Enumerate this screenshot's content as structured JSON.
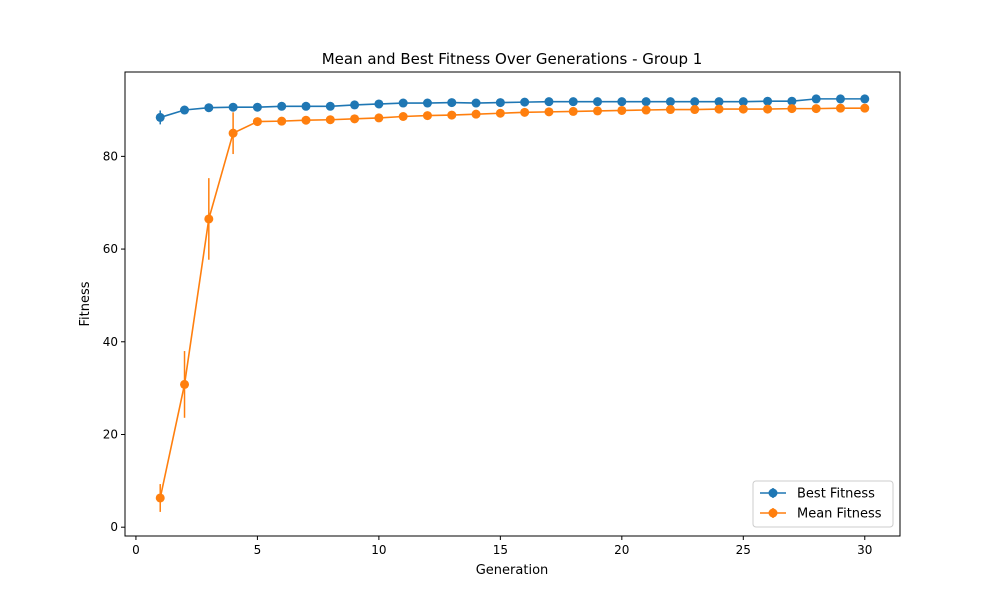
{
  "chart_data": {
    "type": "line",
    "title": "Mean and Best Fitness Over Generations - Group 1",
    "xlabel": "Generation",
    "ylabel": "Fitness",
    "xlim": [
      -0.45,
      31.45
    ],
    "ylim": [
      -1.9,
      98.2
    ],
    "xticks": [
      0,
      5,
      10,
      15,
      20,
      25,
      30
    ],
    "yticks": [
      0,
      20,
      40,
      60,
      80
    ],
    "grid": false,
    "legend_position": "bottom-right",
    "x": [
      1,
      2,
      3,
      4,
      5,
      6,
      7,
      8,
      9,
      10,
      11,
      12,
      13,
      14,
      15,
      16,
      17,
      18,
      19,
      20,
      21,
      22,
      23,
      24,
      25,
      26,
      27,
      28,
      29,
      30
    ],
    "series": [
      {
        "name": "Best Fitness",
        "color": "#1f77b4",
        "values": [
          88.4,
          90.0,
          90.5,
          90.6,
          90.6,
          90.8,
          90.8,
          90.8,
          91.1,
          91.3,
          91.5,
          91.5,
          91.6,
          91.5,
          91.6,
          91.7,
          91.8,
          91.8,
          91.8,
          91.8,
          91.8,
          91.8,
          91.8,
          91.8,
          91.8,
          91.9,
          91.9,
          92.4,
          92.4,
          92.4
        ],
        "errors": [
          1.5,
          0.5,
          0.5,
          0.5,
          0.4,
          0.4,
          0.4,
          0.4,
          0.4,
          0.4,
          0.4,
          0.4,
          0.5,
          0.5,
          0.4,
          0.4,
          0.4,
          0.4,
          0.4,
          0.4,
          0.4,
          0.4,
          0.4,
          0.4,
          0.4,
          0.4,
          0.4,
          0.4,
          0.4,
          0.4
        ]
      },
      {
        "name": "Mean Fitness",
        "color": "#ff7f0e",
        "values": [
          6.3,
          30.8,
          66.5,
          85.0,
          87.5,
          87.6,
          87.8,
          87.9,
          88.1,
          88.3,
          88.6,
          88.8,
          88.9,
          89.1,
          89.3,
          89.5,
          89.6,
          89.7,
          89.8,
          89.9,
          90.0,
          90.1,
          90.1,
          90.2,
          90.2,
          90.2,
          90.3,
          90.3,
          90.4,
          90.4
        ],
        "errors": [
          3.0,
          7.2,
          8.8,
          4.5,
          0.4,
          0.4,
          0.4,
          0.4,
          0.4,
          0.4,
          0.4,
          0.4,
          0.4,
          0.4,
          0.4,
          0.4,
          0.4,
          0.4,
          0.4,
          0.4,
          0.4,
          0.4,
          0.4,
          0.4,
          0.4,
          0.4,
          0.4,
          0.4,
          0.4,
          0.4
        ]
      }
    ]
  }
}
